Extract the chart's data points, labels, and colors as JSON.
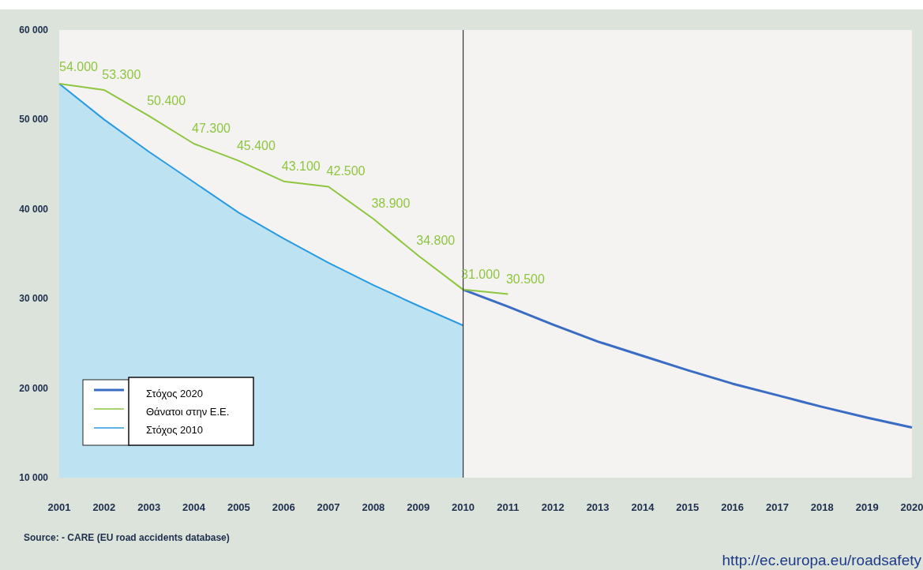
{
  "chart_data": {
    "type": "line",
    "series": [
      {
        "name": "Στόχος 2020",
        "color": "#3a6cc4",
        "x": [
          2010,
          2011,
          2012,
          2013,
          2014,
          2015,
          2016,
          2017,
          2018,
          2019,
          2020
        ],
        "values": [
          31000,
          29100,
          27100,
          25200,
          23600,
          22000,
          20500,
          19200,
          17900,
          16700,
          15600
        ]
      },
      {
        "name": "Θάνατοι στην Ε.Ε.",
        "color": "#8dc63f",
        "x": [
          2001,
          2002,
          2003,
          2004,
          2005,
          2006,
          2007,
          2008,
          2009,
          2010,
          2011
        ],
        "values": [
          54000,
          53300,
          50400,
          47300,
          45400,
          43100,
          42500,
          38900,
          34800,
          31000,
          30500
        ],
        "value_labels": [
          "54.000",
          "53.300",
          "50.400",
          "47.300",
          "45.400",
          "43.100",
          "42.500",
          "38.900",
          "34.800",
          "31.000",
          "30.500"
        ]
      },
      {
        "name": "Στόχος 2010",
        "type": "area",
        "color": "#2a9ae0",
        "x": [
          2001,
          2002,
          2003,
          2004,
          2005,
          2006,
          2007,
          2008,
          2009,
          2010
        ],
        "values": [
          54000,
          50000,
          46400,
          43000,
          39600,
          36700,
          34000,
          31500,
          29200,
          27000
        ]
      }
    ],
    "xlim": [
      2001,
      2020
    ],
    "xticks": [
      2001,
      2002,
      2003,
      2004,
      2005,
      2006,
      2007,
      2008,
      2009,
      2010,
      2011,
      2012,
      2013,
      2014,
      2015,
      2016,
      2017,
      2018,
      2019,
      2020
    ],
    "ylim": [
      10000,
      60000
    ],
    "yticks": [
      {
        "value": 10000,
        "label": "10 000"
      },
      {
        "value": 20000,
        "label": "20 000"
      },
      {
        "value": 30000,
        "label": "30 000"
      },
      {
        "value": 40000,
        "label": "40 000"
      },
      {
        "value": 50000,
        "label": "50 000"
      },
      {
        "value": 60000,
        "label": "60 000"
      }
    ],
    "ref_lines": [
      {
        "axis": "x",
        "value": 2010,
        "color": "#333333"
      }
    ],
    "legend": "bottom left",
    "annotations": [
      "Source: - CARE (EU road accidents database)",
      "http://ec.europa.eu/roadsafety"
    ]
  }
}
